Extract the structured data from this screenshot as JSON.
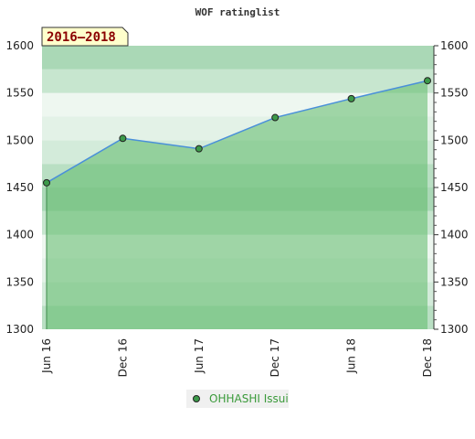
{
  "chart_data": {
    "type": "area",
    "title": "WOF ratinglist",
    "period_label": "2016–2018",
    "categories": [
      "Jun 16",
      "Dec 16",
      "Jun 17",
      "Dec 17",
      "Jun 18",
      "Dec 18"
    ],
    "series": [
      {
        "name": "OHHASHI Issui",
        "values": [
          1455,
          1502,
          1491,
          1524,
          1544,
          1563
        ]
      }
    ],
    "ylim": [
      1300,
      1600
    ],
    "yticks": [
      "1300",
      "1350",
      "1400",
      "1450",
      "1500",
      "1550",
      "1600"
    ],
    "grid": true,
    "legend": "bottom-center",
    "colors": {
      "area_fill": "#5fb96a",
      "line": "#4a90d9",
      "marker": "#3c9a4a"
    }
  }
}
